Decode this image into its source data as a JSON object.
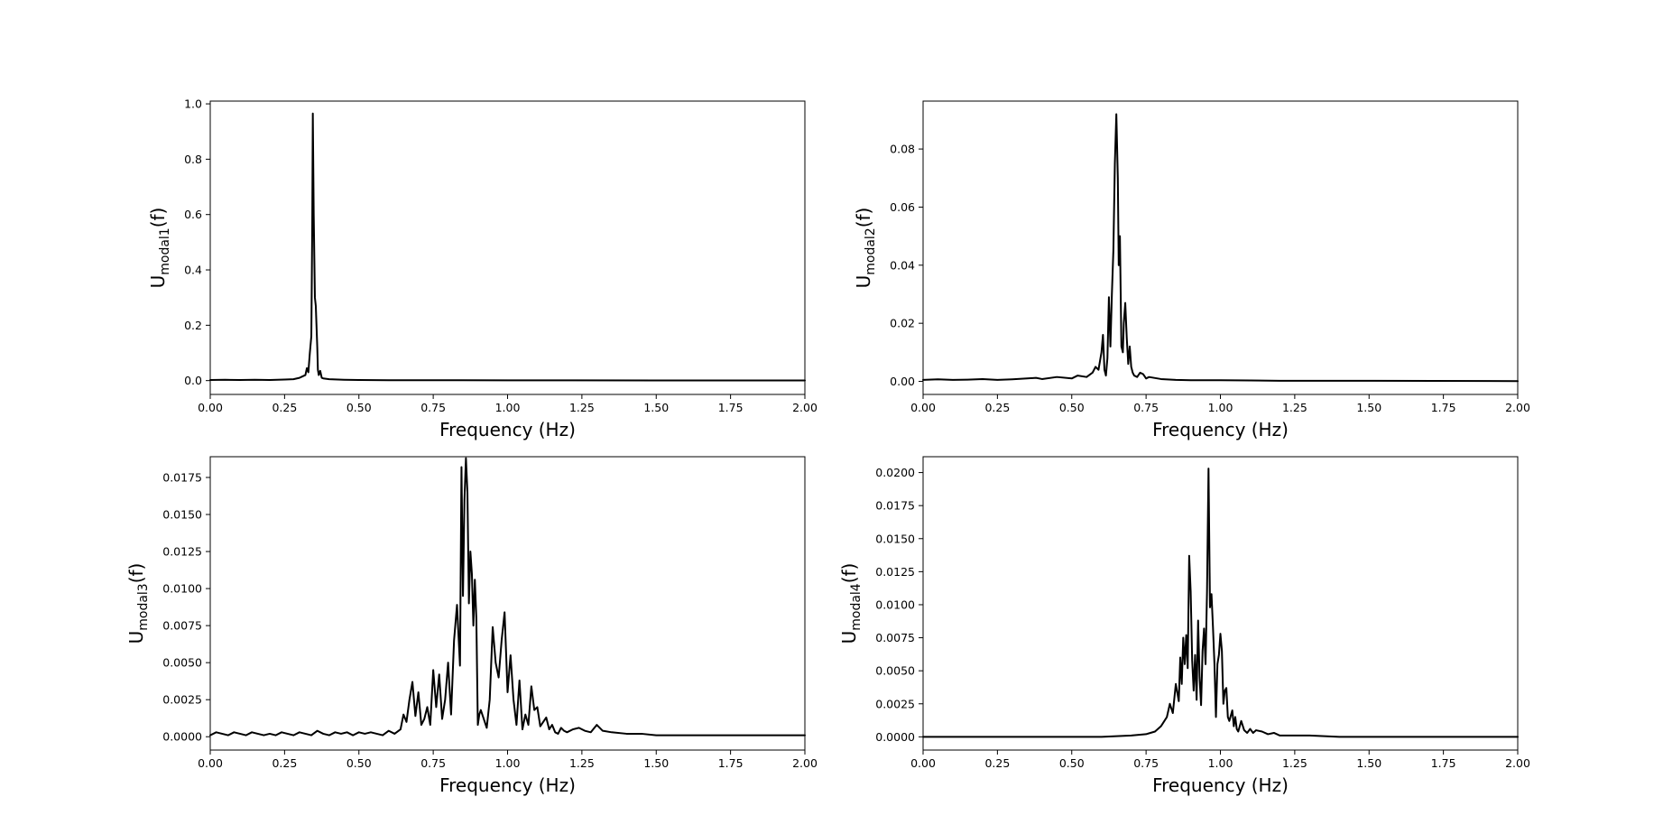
{
  "colors": {
    "line": "#000000",
    "frame": "#000000",
    "background": "#ffffff"
  },
  "chart_data": [
    {
      "type": "line",
      "xlabel": "Frequency (Hz)",
      "ylabel": {
        "base": "U",
        "sub": "modal1",
        "suffix": "(f)"
      },
      "xlim": [
        0,
        2.0
      ],
      "ylim": [
        -0.05,
        1.01
      ],
      "xticks": [
        0,
        0.25,
        0.5,
        0.75,
        1.0,
        1.25,
        1.5,
        1.75,
        2.0
      ],
      "xtick_labels": [
        "0.00",
        "0.25",
        "0.50",
        "0.75",
        "1.00",
        "1.25",
        "1.50",
        "1.75",
        "2.00"
      ],
      "yticks": [
        0,
        0.2,
        0.4,
        0.6,
        0.8,
        1.0
      ],
      "ytick_labels": [
        "0.0",
        "0.2",
        "0.4",
        "0.6",
        "0.8",
        "1.0"
      ],
      "grid": false,
      "series": [
        {
          "color": "#000000",
          "x": [
            0.0,
            0.05,
            0.1,
            0.15,
            0.2,
            0.25,
            0.28,
            0.3,
            0.31,
            0.32,
            0.325,
            0.33,
            0.335,
            0.34,
            0.343,
            0.345,
            0.348,
            0.352,
            0.355,
            0.36,
            0.362,
            0.365,
            0.37,
            0.375,
            0.38,
            0.4,
            0.45,
            0.5,
            0.6,
            0.8,
            1.0,
            1.2,
            1.5,
            1.75,
            2.0
          ],
          "y": [
            0.002,
            0.003,
            0.002,
            0.003,
            0.002,
            0.004,
            0.005,
            0.01,
            0.015,
            0.02,
            0.045,
            0.03,
            0.1,
            0.16,
            0.55,
            0.965,
            0.6,
            0.3,
            0.27,
            0.12,
            0.04,
            0.02,
            0.035,
            0.01,
            0.008,
            0.005,
            0.003,
            0.002,
            0.0015,
            0.0012,
            0.001,
            0.0008,
            0.0006,
            0.0005,
            0.0004
          ]
        }
      ]
    },
    {
      "type": "line",
      "xlabel": "Frequency (Hz)",
      "ylabel": {
        "base": "U",
        "sub": "modal2",
        "suffix": "(f)"
      },
      "xlim": [
        0,
        2.0
      ],
      "ylim": [
        -0.0045,
        0.0965
      ],
      "xticks": [
        0,
        0.25,
        0.5,
        0.75,
        1.0,
        1.25,
        1.5,
        1.75,
        2.0
      ],
      "xtick_labels": [
        "0.00",
        "0.25",
        "0.50",
        "0.75",
        "1.00",
        "1.25",
        "1.50",
        "1.75",
        "2.00"
      ],
      "yticks": [
        0,
        0.02,
        0.04,
        0.06,
        0.08
      ],
      "ytick_labels": [
        "0.00",
        "0.02",
        "0.04",
        "0.06",
        "0.08"
      ],
      "grid": false,
      "series": [
        {
          "color": "#000000",
          "x": [
            0.0,
            0.05,
            0.1,
            0.15,
            0.2,
            0.25,
            0.3,
            0.35,
            0.38,
            0.4,
            0.45,
            0.5,
            0.52,
            0.55,
            0.57,
            0.58,
            0.59,
            0.6,
            0.605,
            0.61,
            0.615,
            0.62,
            0.625,
            0.63,
            0.635,
            0.64,
            0.645,
            0.65,
            0.655,
            0.658,
            0.662,
            0.667,
            0.672,
            0.675,
            0.68,
            0.685,
            0.69,
            0.695,
            0.7,
            0.705,
            0.71,
            0.72,
            0.73,
            0.74,
            0.75,
            0.76,
            0.8,
            0.85,
            0.9,
            1.0,
            1.1,
            1.2,
            1.5,
            2.0
          ],
          "y": [
            0.0005,
            0.0007,
            0.0005,
            0.0006,
            0.0008,
            0.0005,
            0.0007,
            0.001,
            0.0012,
            0.0008,
            0.0015,
            0.001,
            0.002,
            0.0015,
            0.003,
            0.005,
            0.004,
            0.01,
            0.016,
            0.004,
            0.002,
            0.008,
            0.029,
            0.012,
            0.03,
            0.045,
            0.075,
            0.092,
            0.07,
            0.04,
            0.05,
            0.012,
            0.01,
            0.02,
            0.027,
            0.015,
            0.006,
            0.012,
            0.005,
            0.003,
            0.002,
            0.0015,
            0.003,
            0.0025,
            0.001,
            0.0015,
            0.0008,
            0.0005,
            0.0004,
            0.0004,
            0.0003,
            0.0002,
            0.0002,
            0.0001
          ]
        }
      ]
    },
    {
      "type": "line",
      "xlabel": "Frequency (Hz)",
      "ylabel": {
        "base": "U",
        "sub": "modal3",
        "suffix": "(f)"
      },
      "xlim": [
        0,
        2.0
      ],
      "ylim": [
        -0.0009,
        0.0189
      ],
      "xticks": [
        0,
        0.25,
        0.5,
        0.75,
        1.0,
        1.25,
        1.5,
        1.75,
        2.0
      ],
      "xtick_labels": [
        "0.00",
        "0.25",
        "0.50",
        "0.75",
        "1.00",
        "1.25",
        "1.50",
        "1.75",
        "2.00"
      ],
      "yticks": [
        0,
        0.0025,
        0.005,
        0.0075,
        0.01,
        0.0125,
        0.015,
        0.0175
      ],
      "ytick_labels": [
        "0.0000",
        "0.0025",
        "0.0050",
        "0.0075",
        "0.0100",
        "0.0125",
        "0.0150",
        "0.0175"
      ],
      "grid": false,
      "series": [
        {
          "color": "#000000",
          "x": [
            0.0,
            0.02,
            0.04,
            0.06,
            0.08,
            0.1,
            0.12,
            0.14,
            0.16,
            0.18,
            0.2,
            0.22,
            0.24,
            0.26,
            0.28,
            0.3,
            0.32,
            0.34,
            0.36,
            0.38,
            0.4,
            0.42,
            0.44,
            0.46,
            0.48,
            0.5,
            0.52,
            0.54,
            0.56,
            0.58,
            0.6,
            0.62,
            0.64,
            0.65,
            0.66,
            0.67,
            0.68,
            0.69,
            0.7,
            0.71,
            0.72,
            0.73,
            0.74,
            0.75,
            0.76,
            0.77,
            0.78,
            0.79,
            0.8,
            0.81,
            0.82,
            0.83,
            0.84,
            0.845,
            0.85,
            0.855,
            0.86,
            0.865,
            0.87,
            0.875,
            0.88,
            0.885,
            0.89,
            0.895,
            0.9,
            0.905,
            0.91,
            0.92,
            0.93,
            0.94,
            0.95,
            0.96,
            0.97,
            0.98,
            0.99,
            1.0,
            1.01,
            1.02,
            1.03,
            1.04,
            1.05,
            1.06,
            1.07,
            1.08,
            1.09,
            1.1,
            1.11,
            1.12,
            1.13,
            1.14,
            1.15,
            1.16,
            1.17,
            1.18,
            1.19,
            1.2,
            1.22,
            1.24,
            1.26,
            1.28,
            1.3,
            1.32,
            1.35,
            1.4,
            1.45,
            1.5,
            1.6,
            1.7,
            1.8,
            1.9,
            2.0
          ],
          "y": [
            0.0001,
            0.0003,
            0.0002,
            0.0001,
            0.0003,
            0.0002,
            0.0001,
            0.0003,
            0.0002,
            0.0001,
            0.0002,
            0.0001,
            0.0003,
            0.0002,
            0.0001,
            0.0003,
            0.0002,
            0.0001,
            0.0004,
            0.0002,
            0.0001,
            0.0003,
            0.0002,
            0.0003,
            0.0001,
            0.0003,
            0.0002,
            0.0003,
            0.0002,
            0.0001,
            0.0004,
            0.0002,
            0.0005,
            0.0015,
            0.001,
            0.0025,
            0.0037,
            0.0014,
            0.003,
            0.0008,
            0.0012,
            0.002,
            0.0008,
            0.0045,
            0.002,
            0.0042,
            0.0012,
            0.0025,
            0.005,
            0.0015,
            0.0065,
            0.0089,
            0.0048,
            0.0182,
            0.0095,
            0.016,
            0.0188,
            0.0165,
            0.009,
            0.0125,
            0.011,
            0.0075,
            0.0106,
            0.008,
            0.0008,
            0.0015,
            0.0018,
            0.0012,
            0.0006,
            0.0025,
            0.0074,
            0.005,
            0.004,
            0.0065,
            0.0084,
            0.003,
            0.0055,
            0.0025,
            0.0008,
            0.0038,
            0.0005,
            0.0015,
            0.0008,
            0.0034,
            0.0018,
            0.002,
            0.0007,
            0.001,
            0.0013,
            0.0005,
            0.0008,
            0.0003,
            0.0002,
            0.0006,
            0.0004,
            0.0003,
            0.0005,
            0.0006,
            0.0004,
            0.0003,
            0.0008,
            0.0004,
            0.0003,
            0.0002,
            0.0002,
            0.0001,
            0.0001,
            0.0001,
            0.0001,
            0.0001,
            0.0001
          ]
        }
      ]
    },
    {
      "type": "line",
      "xlabel": "Frequency (Hz)",
      "ylabel": {
        "base": "U",
        "sub": "modal4",
        "suffix": "(f)"
      },
      "xlim": [
        0,
        2.0
      ],
      "ylim": [
        -0.001,
        0.0212
      ],
      "xticks": [
        0,
        0.25,
        0.5,
        0.75,
        1.0,
        1.25,
        1.5,
        1.75,
        2.0
      ],
      "xtick_labels": [
        "0.00",
        "0.25",
        "0.50",
        "0.75",
        "1.00",
        "1.25",
        "1.50",
        "1.75",
        "2.00"
      ],
      "yticks": [
        0,
        0.0025,
        0.005,
        0.0075,
        0.01,
        0.0125,
        0.015,
        0.0175,
        0.02
      ],
      "ytick_labels": [
        "0.0000",
        "0.0025",
        "0.0050",
        "0.0075",
        "0.0100",
        "0.0125",
        "0.0150",
        "0.0175",
        "0.0200"
      ],
      "grid": false,
      "series": [
        {
          "color": "#000000",
          "x": [
            0.0,
            0.1,
            0.2,
            0.3,
            0.4,
            0.5,
            0.6,
            0.7,
            0.75,
            0.78,
            0.8,
            0.82,
            0.83,
            0.84,
            0.85,
            0.86,
            0.865,
            0.87,
            0.875,
            0.88,
            0.885,
            0.89,
            0.895,
            0.9,
            0.905,
            0.91,
            0.915,
            0.92,
            0.925,
            0.93,
            0.935,
            0.94,
            0.945,
            0.95,
            0.955,
            0.96,
            0.965,
            0.97,
            0.975,
            0.98,
            0.985,
            0.99,
            0.995,
            1.0,
            1.005,
            1.01,
            1.015,
            1.02,
            1.025,
            1.03,
            1.04,
            1.045,
            1.05,
            1.055,
            1.06,
            1.065,
            1.07,
            1.08,
            1.09,
            1.1,
            1.11,
            1.12,
            1.14,
            1.16,
            1.18,
            1.2,
            1.25,
            1.3,
            1.4,
            1.5,
            1.7,
            2.0
          ],
          "y": [
            0.0,
            0.0,
            0.0,
            0.0,
            0.0,
            0.0,
            0.0,
            0.0001,
            0.0002,
            0.0004,
            0.0008,
            0.0015,
            0.0025,
            0.0018,
            0.004,
            0.0027,
            0.006,
            0.004,
            0.0075,
            0.0055,
            0.0077,
            0.0052,
            0.0137,
            0.011,
            0.0058,
            0.0035,
            0.0062,
            0.0028,
            0.0088,
            0.0045,
            0.0024,
            0.0065,
            0.0082,
            0.0055,
            0.011,
            0.0203,
            0.0098,
            0.0108,
            0.0083,
            0.0055,
            0.0015,
            0.0055,
            0.0062,
            0.0078,
            0.0065,
            0.0025,
            0.0035,
            0.0037,
            0.0015,
            0.0012,
            0.002,
            0.0008,
            0.0015,
            0.0006,
            0.0004,
            0.0008,
            0.0012,
            0.0005,
            0.0003,
            0.0006,
            0.0003,
            0.0005,
            0.0004,
            0.0002,
            0.0003,
            0.0001,
            0.0001,
            0.0001,
            0.0,
            0.0,
            0.0,
            0.0
          ]
        }
      ]
    }
  ]
}
